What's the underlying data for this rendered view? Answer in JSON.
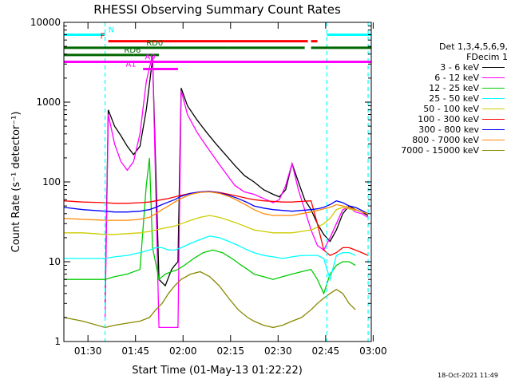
{
  "chart_data": {
    "type": "line",
    "title": "RHESSI Observing Summary Count Rates",
    "xlabel": "Start Time (01-May-13 01:22:22)",
    "ylabel": "Count Rate (s⁻¹ detector⁻¹)",
    "x_unit": "minutes after 01:22:22",
    "xlim": [
      0,
      97
    ],
    "ylim": [
      1,
      10000
    ],
    "yscale": "log",
    "x_ticks": [
      {
        "x": 7.6,
        "label": "01:30"
      },
      {
        "x": 22.6,
        "label": "01:45"
      },
      {
        "x": 37.6,
        "label": "02:00"
      },
      {
        "x": 52.6,
        "label": "02:15"
      },
      {
        "x": 67.6,
        "label": "02:30"
      },
      {
        "x": 82.6,
        "label": "02:45"
      },
      {
        "x": 97.6,
        "label": "03:00"
      }
    ],
    "y_ticks": [
      {
        "y": 1,
        "label": "1"
      },
      {
        "y": 10,
        "label": "10"
      },
      {
        "y": 100,
        "label": "100"
      },
      {
        "y": 1000,
        "label": "1000"
      },
      {
        "y": 10000,
        "label": "10000"
      }
    ],
    "legend_title": [
      "Det 1,3,4,5,6,9,",
      "FDecim 1"
    ],
    "series": [
      {
        "name": "3 - 6 keV",
        "color": "#000000",
        "x": [
          13,
          14,
          16,
          18,
          20,
          22,
          24,
          26,
          28,
          30,
          32,
          34,
          35,
          36,
          37,
          39,
          42,
          45,
          48,
          51,
          54,
          57,
          60,
          63,
          66,
          68,
          70,
          72,
          74,
          76,
          78,
          80,
          82,
          84,
          86,
          88,
          90,
          92,
          94,
          96
        ],
        "y": [
          3,
          800,
          500,
          380,
          280,
          220,
          280,
          800,
          3500,
          6,
          5,
          8,
          9,
          10,
          1500,
          900,
          600,
          420,
          300,
          220,
          160,
          120,
          100,
          80,
          70,
          65,
          80,
          170,
          100,
          60,
          45,
          30,
          22,
          18,
          25,
          40,
          50,
          45,
          42,
          38
        ]
      },
      {
        "name": "6 - 12 keV",
        "color": "#ff00ff",
        "x": [
          13,
          14,
          16,
          18,
          20,
          22,
          24,
          26,
          28,
          30,
          32,
          34,
          35,
          36,
          37,
          39,
          42,
          45,
          48,
          51,
          54,
          57,
          60,
          63,
          66,
          68,
          70,
          72,
          74,
          76,
          78,
          80,
          82,
          84,
          86,
          88,
          90,
          92,
          94,
          96
        ],
        "y": [
          2,
          700,
          300,
          180,
          140,
          180,
          400,
          1800,
          4000,
          1.5,
          1.5,
          1.5,
          1.5,
          1.5,
          1400,
          700,
          420,
          280,
          190,
          130,
          90,
          75,
          70,
          62,
          55,
          60,
          90,
          170,
          80,
          45,
          25,
          16,
          14,
          20,
          30,
          45,
          48,
          42,
          40,
          36
        ]
      },
      {
        "name": "12 - 25 keV",
        "color": "#00cc00",
        "x": [
          0,
          6,
          13,
          16,
          20,
          24,
          26,
          27,
          28,
          30,
          32,
          34,
          36,
          38,
          41,
          44,
          47,
          50,
          53,
          56,
          58,
          60,
          63,
          66,
          69,
          72,
          75,
          78,
          80,
          82,
          84,
          86,
          88,
          90,
          92
        ],
        "y": [
          6,
          6,
          6,
          6.5,
          7,
          8,
          90,
          200,
          15,
          6,
          7,
          7.5,
          8,
          9,
          11,
          13,
          14,
          13,
          11,
          9,
          8,
          7,
          6.5,
          6,
          6.5,
          7,
          7.5,
          8,
          6,
          4,
          7,
          9,
          10,
          10,
          9
        ]
      },
      {
        "name": "25 - 50 keV",
        "color": "#00ffff",
        "x": [
          0,
          6,
          13,
          16,
          20,
          24,
          27,
          29,
          31,
          33,
          35,
          37,
          40,
          43,
          46,
          49,
          52,
          55,
          58,
          60,
          63,
          66,
          69,
          72,
          75,
          78,
          80,
          82,
          84,
          86,
          88,
          90,
          92
        ],
        "y": [
          11,
          11,
          11,
          11.5,
          12,
          13,
          14,
          15,
          15,
          14,
          14,
          15,
          17,
          19,
          21,
          20,
          18,
          16,
          14,
          13,
          12,
          11.5,
          11,
          11.5,
          12,
          12,
          12,
          11,
          6,
          12,
          13,
          13,
          12
        ]
      },
      {
        "name": "50 - 100 keV",
        "color": "#cccc00",
        "x": [
          0,
          6,
          13,
          16,
          20,
          24,
          27,
          29,
          31,
          33,
          35,
          37,
          40,
          43,
          46,
          49,
          52,
          55,
          58,
          60,
          63,
          66,
          69,
          72,
          75,
          78,
          80,
          82,
          84,
          86,
          88,
          90,
          92
        ],
        "y": [
          23,
          23,
          22,
          22,
          22.5,
          23,
          24,
          25,
          26,
          27,
          28,
          30,
          33,
          36,
          38,
          36,
          33,
          30,
          27,
          25,
          24,
          23,
          23,
          23,
          24,
          25,
          27,
          30,
          35,
          45,
          48,
          46,
          44
        ]
      },
      {
        "name": "100 - 300 keV",
        "color": "#ff0000",
        "x": [
          0,
          6,
          13,
          16,
          20,
          24,
          27,
          29,
          31,
          33,
          35,
          37,
          40,
          43,
          46,
          49,
          52,
          55,
          58,
          60,
          63,
          66,
          69,
          72,
          75,
          78,
          80,
          82,
          84,
          86,
          88,
          90,
          92,
          94,
          96
        ],
        "y": [
          58,
          56,
          55,
          54,
          54,
          55,
          56,
          58,
          60,
          62,
          65,
          68,
          72,
          75,
          76,
          74,
          70,
          66,
          62,
          60,
          58,
          57,
          56,
          56,
          57,
          58,
          30,
          14,
          12,
          13,
          15,
          15,
          14,
          13,
          12
        ]
      },
      {
        "name": "300 - 800 kev",
        "color": "#0000ff",
        "x": [
          0,
          6,
          13,
          16,
          20,
          24,
          27,
          29,
          31,
          33,
          35,
          37,
          40,
          43,
          46,
          49,
          52,
          55,
          58,
          60,
          63,
          66,
          69,
          72,
          75,
          78,
          80,
          82,
          84,
          86,
          88,
          90,
          92,
          94,
          96
        ],
        "y": [
          48,
          45,
          43,
          42,
          42,
          43,
          45,
          48,
          52,
          56,
          60,
          66,
          72,
          75,
          76,
          73,
          68,
          62,
          55,
          50,
          47,
          45,
          44,
          43,
          44,
          45,
          46,
          48,
          52,
          58,
          55,
          50,
          48,
          44,
          40
        ]
      },
      {
        "name": "800 - 7000 keV",
        "color": "#ff8800",
        "x": [
          0,
          6,
          13,
          16,
          20,
          24,
          27,
          29,
          31,
          33,
          35,
          37,
          40,
          43,
          46,
          49,
          52,
          55,
          58,
          60,
          63,
          66,
          69,
          72,
          75,
          78,
          80,
          82,
          84,
          86,
          88,
          90,
          92,
          94,
          96
        ],
        "y": [
          35,
          34,
          33,
          33,
          33,
          34,
          36,
          40,
          45,
          50,
          56,
          62,
          70,
          74,
          75,
          72,
          66,
          58,
          50,
          45,
          40,
          38,
          38,
          38,
          40,
          42,
          44,
          46,
          48,
          52,
          50,
          48,
          45,
          42,
          40
        ]
      },
      {
        "name": "7000 - 15000 keV",
        "color": "#888800",
        "x": [
          0,
          6,
          13,
          16,
          20,
          24,
          27,
          29,
          31,
          33,
          35,
          37,
          40,
          43,
          46,
          49,
          52,
          55,
          58,
          60,
          63,
          66,
          69,
          72,
          75,
          78,
          80,
          82,
          84,
          86,
          88,
          90,
          92
        ],
        "y": [
          2,
          1.8,
          1.5,
          1.6,
          1.7,
          1.8,
          2,
          2.5,
          3,
          4,
          5,
          6,
          7,
          7.5,
          6.5,
          5,
          3.5,
          2.5,
          2,
          1.8,
          1.6,
          1.5,
          1.6,
          1.8,
          2,
          2.5,
          3,
          3.5,
          4,
          4.5,
          4,
          3,
          2.5
        ]
      }
    ],
    "flags": [
      {
        "label": "N",
        "color": "#00ffff",
        "segments": [
          [
            0,
            13
          ],
          [
            83,
            97
          ]
        ],
        "level": 7000
      },
      {
        "label": "F",
        "color": "#ff0000",
        "segments": [
          [
            14,
            77
          ],
          [
            78,
            80
          ]
        ],
        "level": 5800
      },
      {
        "label": "RD0",
        "color": "#006600",
        "segments": [
          [
            0,
            52
          ],
          [
            52,
            76
          ],
          [
            78,
            97
          ]
        ],
        "level": 4800
      },
      {
        "label": "RD6",
        "color": "#006600",
        "segments": [
          [
            0,
            22
          ],
          [
            22,
            30
          ]
        ],
        "level": 3900
      },
      {
        "label": "A0",
        "color": "#ff00ff",
        "segments": [
          [
            0,
            97
          ]
        ],
        "level": 3200
      },
      {
        "label": "A1",
        "color": "#ff00ff",
        "segments": [
          [
            25,
            36
          ]
        ],
        "level": 2600
      }
    ],
    "grid": false,
    "legend_placement": "right"
  },
  "timestamp": "18-Oct-2021 11:49"
}
